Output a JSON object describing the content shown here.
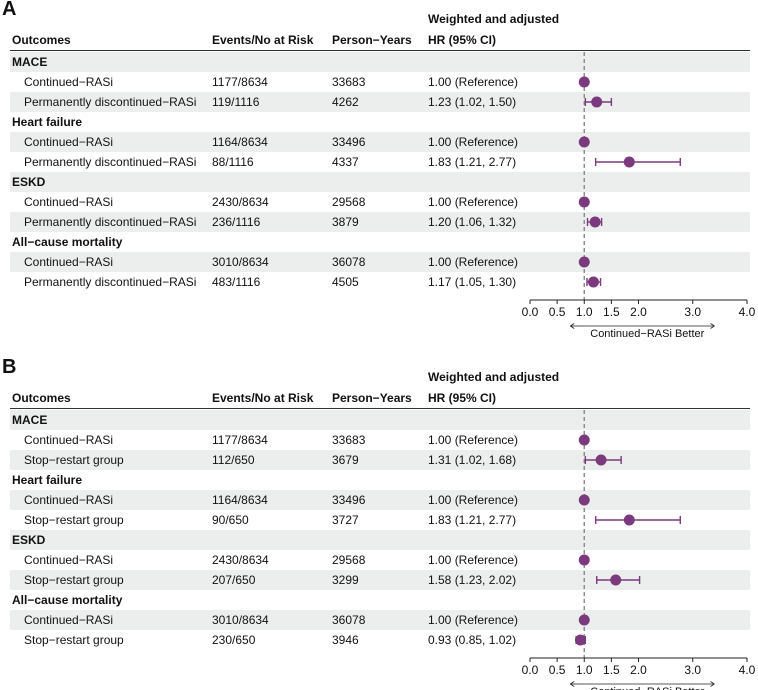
{
  "colors": {
    "point": "#7b3a7e",
    "shade": "#eceeed",
    "refline": "#888888"
  },
  "chart_data": [
    {
      "type": "forest",
      "panel_label": "A",
      "header": {
        "outcomes": "Outcomes",
        "events": "Events/No at Risk",
        "person_years": "Person−Years",
        "hr_line1": "Weighted and adjusted",
        "hr_line2": "HR (95% CI)"
      },
      "xlim": [
        0,
        4
      ],
      "xticks": [
        "0.0",
        "0.5",
        "1.0",
        "1.5",
        "2.0",
        "3.0",
        "4.0"
      ],
      "reference_value": 1,
      "direction_label": "Continued−RASi Better",
      "groups": [
        {
          "name": "MACE",
          "rows": [
            {
              "label": "Continued−RASi",
              "events": "1177/8634",
              "person_years": "33683",
              "hr_text": "1.00 (Reference)",
              "hr": 1.0,
              "lo": 1.0,
              "hi": 1.0
            },
            {
              "label": "Permanently discontinued−RASi",
              "events": "119/1116",
              "person_years": "4262",
              "hr_text": "1.23 (1.02, 1.50)",
              "hr": 1.23,
              "lo": 1.02,
              "hi": 1.5
            }
          ]
        },
        {
          "name": "Heart failure",
          "rows": [
            {
              "label": "Continued−RASi",
              "events": "1164/8634",
              "person_years": "33496",
              "hr_text": "1.00 (Reference)",
              "hr": 1.0,
              "lo": 1.0,
              "hi": 1.0
            },
            {
              "label": "Permanently discontinued−RASi",
              "events": "88/1116",
              "person_years": "4337",
              "hr_text": "1.83 (1.21, 2.77)",
              "hr": 1.83,
              "lo": 1.21,
              "hi": 2.77
            }
          ]
        },
        {
          "name": "ESKD",
          "rows": [
            {
              "label": "Continued−RASi",
              "events": "2430/8634",
              "person_years": "29568",
              "hr_text": "1.00 (Reference)",
              "hr": 1.0,
              "lo": 1.0,
              "hi": 1.0
            },
            {
              "label": "Permanently discontinued−RASi",
              "events": "236/1116",
              "person_years": "3879",
              "hr_text": "1.20 (1.06, 1.32)",
              "hr": 1.2,
              "lo": 1.06,
              "hi": 1.32
            }
          ]
        },
        {
          "name": "All−cause mortality",
          "rows": [
            {
              "label": "Continued−RASi",
              "events": "3010/8634",
              "person_years": "36078",
              "hr_text": "1.00 (Reference)",
              "hr": 1.0,
              "lo": 1.0,
              "hi": 1.0
            },
            {
              "label": "Permanently discontinued−RASi",
              "events": "483/1116",
              "person_years": "4505",
              "hr_text": "1.17 (1.05, 1.30)",
              "hr": 1.17,
              "lo": 1.05,
              "hi": 1.3
            }
          ]
        }
      ]
    },
    {
      "type": "forest",
      "panel_label": "B",
      "header": {
        "outcomes": "Outcomes",
        "events": "Events/No at Risk",
        "person_years": "Person−Years",
        "hr_line1": "Weighted and adjusted",
        "hr_line2": "HR (95% CI)"
      },
      "xlim": [
        0,
        4
      ],
      "xticks": [
        "0.0",
        "0.5",
        "1.0",
        "1.5",
        "2.0",
        "3.0",
        "4.0"
      ],
      "reference_value": 1,
      "direction_label": "Continued−RASi Better",
      "groups": [
        {
          "name": "MACE",
          "rows": [
            {
              "label": "Continued−RASi",
              "events": "1177/8634",
              "person_years": "33683",
              "hr_text": "1.00 (Reference)",
              "hr": 1.0,
              "lo": 1.0,
              "hi": 1.0
            },
            {
              "label": "Stop−restart group",
              "events": "112/650",
              "person_years": "3679",
              "hr_text": "1.31 (1.02, 1.68)",
              "hr": 1.31,
              "lo": 1.02,
              "hi": 1.68
            }
          ]
        },
        {
          "name": "Heart failure",
          "rows": [
            {
              "label": "Continued−RASi",
              "events": "1164/8634",
              "person_years": "33496",
              "hr_text": "1.00 (Reference)",
              "hr": 1.0,
              "lo": 1.0,
              "hi": 1.0
            },
            {
              "label": "Stop−restart group",
              "events": "90/650",
              "person_years": "3727",
              "hr_text": "1.83 (1.21, 2.77)",
              "hr": 1.83,
              "lo": 1.21,
              "hi": 2.77
            }
          ]
        },
        {
          "name": "ESKD",
          "rows": [
            {
              "label": "Continued−RASi",
              "events": "2430/8634",
              "person_years": "29568",
              "hr_text": "1.00 (Reference)",
              "hr": 1.0,
              "lo": 1.0,
              "hi": 1.0
            },
            {
              "label": "Stop−restart group",
              "events": "207/650",
              "person_years": "3299",
              "hr_text": "1.58 (1.23, 2.02)",
              "hr": 1.58,
              "lo": 1.23,
              "hi": 2.02
            }
          ]
        },
        {
          "name": "All−cause mortality",
          "rows": [
            {
              "label": "Continued−RASi",
              "events": "3010/8634",
              "person_years": "36078",
              "hr_text": "1.00 (Reference)",
              "hr": 1.0,
              "lo": 1.0,
              "hi": 1.0
            },
            {
              "label": "Stop−restart group",
              "events": "230/650",
              "person_years": "3946",
              "hr_text": "0.93 (0.85, 1.02)",
              "hr": 0.93,
              "lo": 0.85,
              "hi": 1.02
            }
          ]
        }
      ]
    }
  ]
}
